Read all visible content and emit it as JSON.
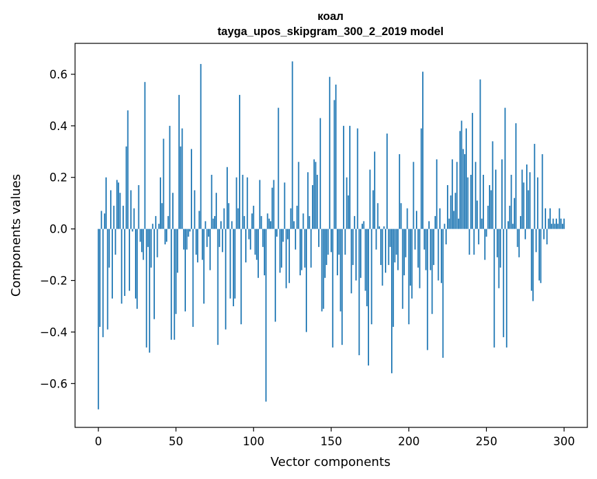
{
  "chart_data": {
    "type": "bar",
    "title": [
      "коал",
      "tayga_upos_skipgram_300_2_2019 model"
    ],
    "xlabel": "Vector components",
    "ylabel": "Components values",
    "xlim": [
      -15,
      315
    ],
    "ylim": [
      -0.77,
      0.72
    ],
    "xticks": [
      0,
      50,
      100,
      150,
      200,
      250,
      300
    ],
    "xtick_labels": [
      "0",
      "50",
      "100",
      "150",
      "200",
      "250",
      "300"
    ],
    "yticks": [
      -0.6,
      -0.4,
      -0.2,
      0.0,
      0.2,
      0.4,
      0.6
    ],
    "ytick_labels": [
      "−0.6",
      "−0.4",
      "−0.2",
      "0.0",
      "0.2",
      "0.4",
      "0.6"
    ],
    "bar_color": "#1f77b4",
    "values": [
      -0.7,
      -0.38,
      0.07,
      -0.42,
      0.06,
      0.2,
      -0.39,
      -0.15,
      0.15,
      -0.27,
      0.09,
      -0.1,
      0.19,
      0.18,
      0.14,
      -0.29,
      0.09,
      -0.26,
      0.32,
      0.46,
      -0.24,
      0.15,
      -0.01,
      0.08,
      -0.27,
      -0.31,
      0.17,
      -0.05,
      -0.09,
      -0.12,
      0.57,
      -0.46,
      -0.07,
      -0.48,
      -0.15,
      0.02,
      -0.35,
      0.05,
      -0.11,
      0.02,
      0.2,
      0.1,
      0.35,
      -0.06,
      -0.05,
      0.05,
      0.4,
      -0.43,
      0.14,
      -0.43,
      -0.33,
      -0.17,
      0.52,
      0.32,
      0.39,
      -0.08,
      -0.32,
      -0.08,
      -0.03,
      -0.01,
      0.31,
      -0.38,
      0.15,
      -0.1,
      -0.13,
      0.07,
      0.64,
      -0.12,
      -0.29,
      0.03,
      -0.07,
      -0.03,
      -0.16,
      0.21,
      0.04,
      0.05,
      0.14,
      -0.45,
      -0.07,
      0.03,
      -0.09,
      0.08,
      -0.39,
      0.24,
      0.1,
      -0.27,
      0.03,
      -0.3,
      -0.27,
      0.2,
      0.08,
      0.52,
      -0.37,
      0.21,
      0.05,
      -0.13,
      0.2,
      -0.04,
      -0.08,
      0.06,
      0.09,
      -0.1,
      -0.12,
      -0.19,
      0.19,
      0.05,
      -0.07,
      -0.18,
      -0.67,
      0.06,
      0.04,
      0.03,
      0.16,
      0.19,
      -0.36,
      -0.03,
      0.47,
      -0.17,
      -0.15,
      -0.05,
      0.18,
      -0.23,
      -0.04,
      -0.21,
      0.08,
      0.65,
      0.03,
      -0.08,
      0.09,
      0.26,
      -0.18,
      -0.16,
      0.06,
      -0.15,
      -0.4,
      0.22,
      0.05,
      -0.15,
      0.17,
      0.27,
      0.26,
      0.21,
      -0.07,
      0.43,
      -0.32,
      -0.31,
      -0.19,
      -0.14,
      -0.1,
      0.59,
      -0.09,
      -0.46,
      0.5,
      0.56,
      -0.18,
      -0.1,
      -0.32,
      -0.45,
      0.4,
      -0.1,
      0.2,
      0.13,
      0.4,
      -0.25,
      -0.14,
      0.05,
      -0.2,
      0.39,
      -0.49,
      -0.19,
      0.02,
      0.03,
      -0.24,
      -0.3,
      -0.53,
      0.23,
      -0.37,
      0.15,
      0.3,
      -0.08,
      0.1,
      0.01,
      -0.14,
      -0.22,
      0.01,
      -0.17,
      0.37,
      -0.14,
      -0.07,
      -0.56,
      -0.38,
      -0.13,
      -0.1,
      -0.16,
      0.29,
      0.1,
      -0.31,
      -0.18,
      -0.11,
      0.08,
      -0.37,
      -0.22,
      -0.27,
      0.26,
      -0.08,
      0.07,
      -0.15,
      -0.23,
      0.39,
      0.61,
      -0.08,
      -0.16,
      -0.47,
      0.03,
      -0.16,
      -0.33,
      -0.14,
      0.05,
      0.27,
      -0.2,
      0.08,
      -0.21,
      -0.5,
      0.02,
      -0.06,
      0.17,
      0.04,
      0.13,
      0.27,
      0.07,
      0.14,
      0.26,
      0.04,
      0.38,
      0.42,
      0.31,
      0.29,
      0.39,
      0.2,
      -0.1,
      0.21,
      0.45,
      -0.1,
      0.26,
      0.11,
      -0.06,
      0.58,
      0.04,
      0.21,
      -0.12,
      -0.03,
      0.09,
      0.17,
      0.15,
      0.34,
      -0.46,
      0.23,
      -0.11,
      -0.23,
      -0.15,
      0.27,
      -0.42,
      0.47,
      -0.46,
      0.03,
      0.09,
      0.21,
      0.02,
      0.12,
      0.41,
      -0.07,
      -0.11,
      0.05,
      0.23,
      0.18,
      -0.04,
      0.25,
      0.15,
      0.22,
      -0.24,
      -0.28,
      0.33,
      -0.09,
      0.2,
      -0.2,
      -0.21,
      0.29,
      -0.04,
      0.08,
      -0.06,
      0.04,
      0.08,
      0.02,
      0.04,
      0.02,
      0.04,
      0.02,
      0.08,
      0.04,
      0.02,
      0.04
    ]
  }
}
